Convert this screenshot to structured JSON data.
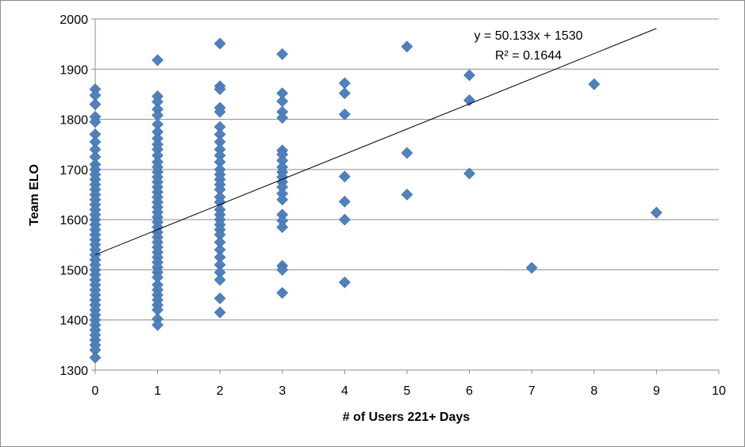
{
  "chart_data": {
    "type": "scatter",
    "title": "",
    "xlabel": "# of Users 221+ Days",
    "ylabel": "Team ELO",
    "xlim": [
      0,
      10
    ],
    "ylim": [
      1300,
      2000
    ],
    "x_ticks": [
      "0",
      "1",
      "2",
      "3",
      "4",
      "5",
      "6",
      "7",
      "8",
      "9",
      "10"
    ],
    "y_ticks": [
      "1300",
      "1400",
      "1500",
      "1600",
      "1700",
      "1800",
      "1900",
      "2000"
    ],
    "grid": "horizontal",
    "legend": "none",
    "marker_color": "#4F81BD",
    "trendline": {
      "slope": 50.133,
      "intercept": 1530,
      "equation": "y = 50.133x + 1530",
      "r_squared": "R² = 0.1644"
    },
    "series": [
      {
        "points": [
          [
            0,
            1860
          ],
          [
            0,
            1848
          ],
          [
            0,
            1830
          ],
          [
            0,
            1805
          ],
          [
            0,
            1795
          ],
          [
            0,
            1770
          ],
          [
            0,
            1755
          ],
          [
            0,
            1740
          ],
          [
            0,
            1725
          ],
          [
            0,
            1710
          ],
          [
            0,
            1700
          ],
          [
            0,
            1690
          ],
          [
            0,
            1680
          ],
          [
            0,
            1670
          ],
          [
            0,
            1660
          ],
          [
            0,
            1650
          ],
          [
            0,
            1640
          ],
          [
            0,
            1630
          ],
          [
            0,
            1620
          ],
          [
            0,
            1610
          ],
          [
            0,
            1600
          ],
          [
            0,
            1590
          ],
          [
            0,
            1580
          ],
          [
            0,
            1570
          ],
          [
            0,
            1560
          ],
          [
            0,
            1550
          ],
          [
            0,
            1540
          ],
          [
            0,
            1530
          ],
          [
            0,
            1520
          ],
          [
            0,
            1510
          ],
          [
            0,
            1500
          ],
          [
            0,
            1490
          ],
          [
            0,
            1480
          ],
          [
            0,
            1470
          ],
          [
            0,
            1460
          ],
          [
            0,
            1450
          ],
          [
            0,
            1440
          ],
          [
            0,
            1430
          ],
          [
            0,
            1420
          ],
          [
            0,
            1410
          ],
          [
            0,
            1400
          ],
          [
            0,
            1390
          ],
          [
            0,
            1380
          ],
          [
            0,
            1370
          ],
          [
            0,
            1360
          ],
          [
            0,
            1350
          ],
          [
            0,
            1340
          ],
          [
            0,
            1325
          ],
          [
            1,
            1918
          ],
          [
            1,
            1846
          ],
          [
            1,
            1835
          ],
          [
            1,
            1820
          ],
          [
            1,
            1808
          ],
          [
            1,
            1790
          ],
          [
            1,
            1775
          ],
          [
            1,
            1762
          ],
          [
            1,
            1750
          ],
          [
            1,
            1740
          ],
          [
            1,
            1728
          ],
          [
            1,
            1715
          ],
          [
            1,
            1705
          ],
          [
            1,
            1695
          ],
          [
            1,
            1685
          ],
          [
            1,
            1675
          ],
          [
            1,
            1665
          ],
          [
            1,
            1655
          ],
          [
            1,
            1645
          ],
          [
            1,
            1635
          ],
          [
            1,
            1625
          ],
          [
            1,
            1615
          ],
          [
            1,
            1605
          ],
          [
            1,
            1595
          ],
          [
            1,
            1585
          ],
          [
            1,
            1575
          ],
          [
            1,
            1565
          ],
          [
            1,
            1555
          ],
          [
            1,
            1545
          ],
          [
            1,
            1535
          ],
          [
            1,
            1525
          ],
          [
            1,
            1515
          ],
          [
            1,
            1505
          ],
          [
            1,
            1495
          ],
          [
            1,
            1485
          ],
          [
            1,
            1470
          ],
          [
            1,
            1460
          ],
          [
            1,
            1450
          ],
          [
            1,
            1440
          ],
          [
            1,
            1430
          ],
          [
            1,
            1420
          ],
          [
            1,
            1402
          ],
          [
            1,
            1390
          ],
          [
            2,
            1951
          ],
          [
            2,
            1866
          ],
          [
            2,
            1860
          ],
          [
            2,
            1823
          ],
          [
            2,
            1815
          ],
          [
            2,
            1785
          ],
          [
            2,
            1770
          ],
          [
            2,
            1755
          ],
          [
            2,
            1740
          ],
          [
            2,
            1728
          ],
          [
            2,
            1715
          ],
          [
            2,
            1700
          ],
          [
            2,
            1690
          ],
          [
            2,
            1680
          ],
          [
            2,
            1670
          ],
          [
            2,
            1660
          ],
          [
            2,
            1645
          ],
          [
            2,
            1635
          ],
          [
            2,
            1620
          ],
          [
            2,
            1610
          ],
          [
            2,
            1600
          ],
          [
            2,
            1590
          ],
          [
            2,
            1580
          ],
          [
            2,
            1570
          ],
          [
            2,
            1555
          ],
          [
            2,
            1540
          ],
          [
            2,
            1525
          ],
          [
            2,
            1510
          ],
          [
            2,
            1495
          ],
          [
            2,
            1480
          ],
          [
            2,
            1443
          ],
          [
            2,
            1415
          ],
          [
            3,
            1930
          ],
          [
            3,
            1852
          ],
          [
            3,
            1836
          ],
          [
            3,
            1815
          ],
          [
            3,
            1803
          ],
          [
            3,
            1738
          ],
          [
            3,
            1730
          ],
          [
            3,
            1718
          ],
          [
            3,
            1705
          ],
          [
            3,
            1695
          ],
          [
            3,
            1685
          ],
          [
            3,
            1675
          ],
          [
            3,
            1665
          ],
          [
            3,
            1652
          ],
          [
            3,
            1640
          ],
          [
            3,
            1610
          ],
          [
            3,
            1598
          ],
          [
            3,
            1585
          ],
          [
            3,
            1508
          ],
          [
            3,
            1500
          ],
          [
            3,
            1454
          ],
          [
            4,
            1872
          ],
          [
            4,
            1852
          ],
          [
            4,
            1810
          ],
          [
            4,
            1686
          ],
          [
            4,
            1636
          ],
          [
            4,
            1600
          ],
          [
            4,
            1475
          ],
          [
            5,
            1945
          ],
          [
            5,
            1733
          ],
          [
            5,
            1650
          ],
          [
            6,
            1888
          ],
          [
            6,
            1838
          ],
          [
            6,
            1692
          ],
          [
            7,
            1504
          ],
          [
            8,
            1870
          ],
          [
            9,
            1614
          ]
        ]
      }
    ]
  }
}
